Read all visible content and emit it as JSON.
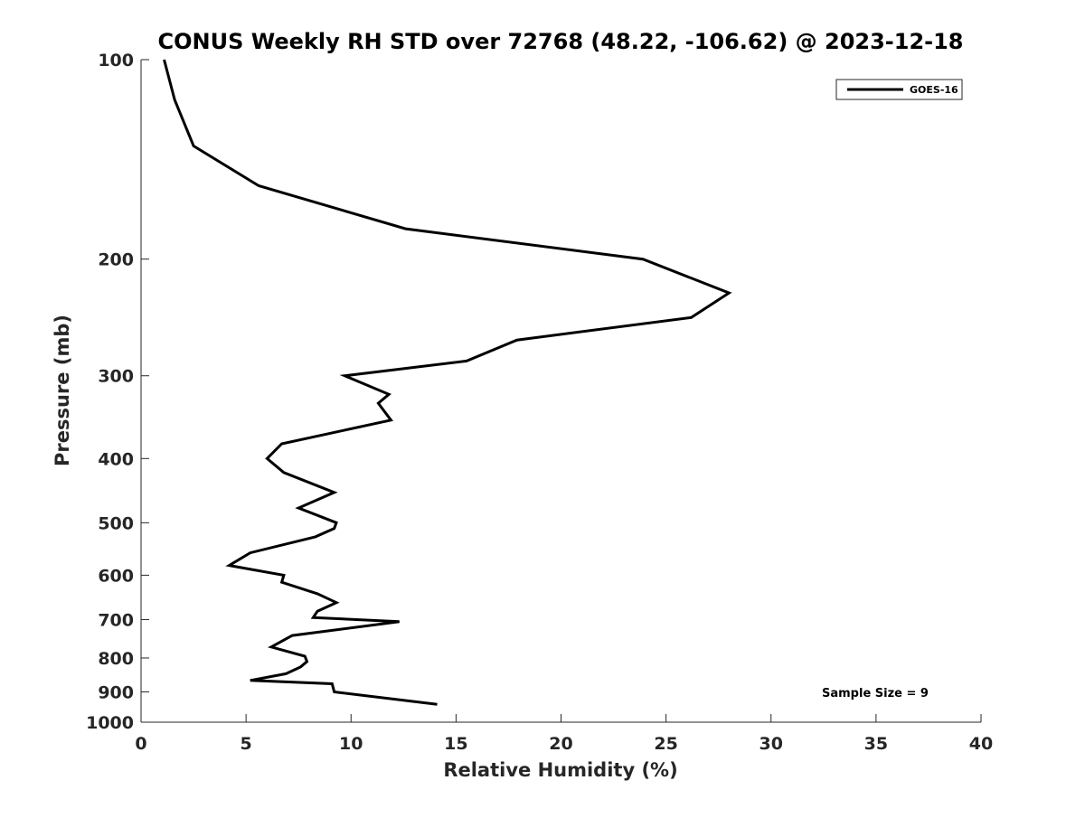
{
  "chart_data": {
    "type": "line",
    "title": "CONUS Weekly RH STD over 72768 (48.22, -106.62) @ 2023-12-18",
    "xlabel": "Relative Humidity (%)",
    "ylabel": "Pressure (mb)",
    "xlim": [
      0,
      40
    ],
    "ylim": [
      100,
      1000
    ],
    "y_scale": "log",
    "y_reversed": true,
    "x_ticks": [
      0,
      5,
      10,
      15,
      20,
      25,
      30,
      35,
      40
    ],
    "y_ticks": [
      100,
      200,
      300,
      400,
      500,
      600,
      700,
      800,
      900,
      1000
    ],
    "grid": false,
    "legend_position": "top-right",
    "line_color": "#000000",
    "series": [
      {
        "name": "GOES-16",
        "x": [
          1.1,
          1.6,
          2.5,
          5.6,
          12.6,
          23.9,
          28.0,
          26.2,
          17.9,
          15.5,
          9.7,
          11.8,
          11.3,
          11.9,
          6.7,
          6.0,
          6.8,
          9.2,
          7.5,
          9.3,
          9.2,
          8.3,
          5.2,
          4.2,
          6.8,
          6.7,
          8.4,
          9.3,
          8.4,
          8.2,
          12.3,
          7.2,
          6.2,
          7.8,
          7.9,
          7.6,
          6.9,
          5.2,
          9.1,
          9.2,
          14.1
        ],
        "y": [
          100,
          115,
          135,
          155,
          180,
          200,
          225,
          245,
          265,
          285,
          300,
          320,
          330,
          350,
          380,
          400,
          420,
          450,
          475,
          500,
          510,
          525,
          555,
          580,
          600,
          615,
          640,
          660,
          680,
          695,
          705,
          740,
          770,
          795,
          810,
          825,
          845,
          865,
          875,
          900,
          940
        ]
      }
    ],
    "annotations": [
      "Sample Size = 9"
    ]
  }
}
